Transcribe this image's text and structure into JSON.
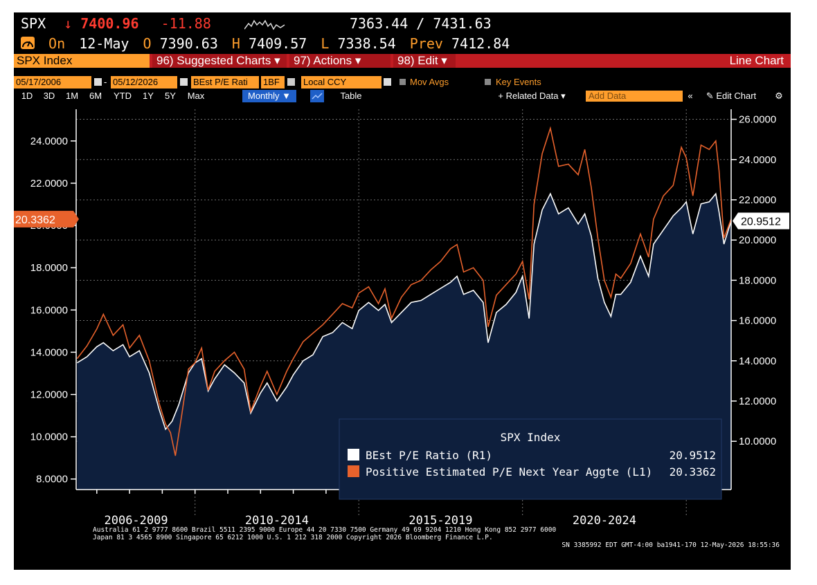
{
  "quote": {
    "ticker": "SPX",
    "arrow": "↓",
    "price": "7400.96",
    "change": "-11.88",
    "bid_ask": "7363.44 / 7431.63",
    "status": "On",
    "date": "12-May",
    "open_label": "O",
    "open": "7390.63",
    "high_label": "H",
    "high": "7409.57",
    "low_label": "L",
    "low": "7338.54",
    "prev_label": "Prev",
    "prev": "7412.84"
  },
  "tabs": {
    "index": "SPX Index",
    "suggested": "96) Suggested Charts ▾",
    "actions": "97) Actions ▾",
    "edit": "98) Edit ▾",
    "right": "Line Chart"
  },
  "controls": {
    "start_date": "05/17/2006",
    "end_date": "05/12/2026",
    "field": "BEst P/E Rati",
    "field_code": "1BF",
    "currency": "Local CCY",
    "mov_avgs": "Mov Avgs",
    "key_events": "Key Events"
  },
  "range": {
    "buttons": [
      "1D",
      "3D",
      "1M",
      "6M",
      "YTD",
      "1Y",
      "5Y",
      "Max"
    ],
    "frequency": "Monthly ▼",
    "table": "Table",
    "related": "+ Related Data ▾",
    "add_data_placeholder": "Add Data",
    "collapse": "«",
    "edit_chart": "✎ Edit Chart",
    "settings_icon": "gear-icon"
  },
  "legend": {
    "title": "SPX Index",
    "entries": [
      {
        "label": "BEst P/E Ratio  (R1)",
        "value": "20.9512",
        "color": "#ffffff"
      },
      {
        "label": "Positive Estimated P/E Next Year Aggte  (L1)",
        "value": "20.3362",
        "color": "#e8622c"
      }
    ]
  },
  "last_values": {
    "left": "20.3362",
    "right": "20.9512"
  },
  "footer": {
    "line1": "Australia 61 2 9777 8600 Brazil 5511 2395 9000 Europe 44 20 7330 7500 Germany 49 69 9204 1210 Hong Kong 852 2977 6000",
    "line2": "Japan 81 3 4565 8900       Singapore 65 6212 1000       U.S. 1 212 318 2000          Copyright 2026 Bloomberg Finance L.P.",
    "line3": "SN 3385992 EDT  GMT-4:00 ba1941-170 12-May-2026 18:55:36"
  },
  "colors": {
    "background": "#000000",
    "area_fill": "#0e1f3d",
    "orange_series": "#e8622c",
    "white_series": "#ffffff",
    "amber": "#ff9e2c",
    "red_bar": "#c01c22"
  },
  "chart_data": {
    "type": "line",
    "x_labels": [
      "2006-2009",
      "2010-2014",
      "2015-2019",
      "2020-2024"
    ],
    "x_range": [
      2006.37,
      2026.37
    ],
    "left_axis": {
      "ticks": [
        "8.0000",
        "10.0000",
        "12.0000",
        "14.0000",
        "16.0000",
        "18.0000",
        "20.0000",
        "22.0000",
        "24.0000"
      ],
      "range": [
        7.5,
        25.5
      ]
    },
    "right_axis": {
      "ticks": [
        "10.0000",
        "12.0000",
        "14.0000",
        "16.0000",
        "18.0000",
        "20.0000",
        "22.0000",
        "24.0000",
        "26.0000"
      ],
      "range": [
        7.6,
        26.5
      ]
    },
    "grid": true,
    "legend_position": "bottom-right",
    "series": [
      {
        "name": "Positive Estimated P/E Next Year Aggte",
        "axis": "left",
        "points": [
          [
            2006.4,
            13.7
          ],
          [
            2006.7,
            14.3
          ],
          [
            2007.0,
            15.1
          ],
          [
            2007.2,
            15.8
          ],
          [
            2007.5,
            14.8
          ],
          [
            2007.8,
            15.3
          ],
          [
            2008.0,
            14.2
          ],
          [
            2008.3,
            14.8
          ],
          [
            2008.6,
            13.6
          ],
          [
            2008.9,
            11.6
          ],
          [
            2009.1,
            10.6
          ],
          [
            2009.25,
            10.2
          ],
          [
            2009.4,
            9.1
          ],
          [
            2009.6,
            11.1
          ],
          [
            2009.8,
            13.2
          ],
          [
            2010.0,
            13.5
          ],
          [
            2010.2,
            14.2
          ],
          [
            2010.4,
            12.2
          ],
          [
            2010.6,
            13.1
          ],
          [
            2010.9,
            13.6
          ],
          [
            2011.2,
            14.0
          ],
          [
            2011.5,
            13.2
          ],
          [
            2011.7,
            11.2
          ],
          [
            2012.0,
            12.4
          ],
          [
            2012.2,
            13.1
          ],
          [
            2012.5,
            12.0
          ],
          [
            2012.8,
            13.1
          ],
          [
            2013.0,
            13.7
          ],
          [
            2013.3,
            14.5
          ],
          [
            2013.6,
            14.9
          ],
          [
            2013.9,
            15.3
          ],
          [
            2014.2,
            15.8
          ],
          [
            2014.5,
            16.3
          ],
          [
            2014.8,
            16.1
          ],
          [
            2015.0,
            16.8
          ],
          [
            2015.3,
            17.1
          ],
          [
            2015.6,
            16.3
          ],
          [
            2015.8,
            17.0
          ],
          [
            2016.0,
            15.6
          ],
          [
            2016.3,
            16.6
          ],
          [
            2016.6,
            17.2
          ],
          [
            2016.9,
            17.4
          ],
          [
            2017.2,
            17.9
          ],
          [
            2017.5,
            18.3
          ],
          [
            2017.8,
            18.9
          ],
          [
            2018.0,
            19.1
          ],
          [
            2018.2,
            17.8
          ],
          [
            2018.5,
            18.0
          ],
          [
            2018.8,
            17.4
          ],
          [
            2018.95,
            15.2
          ],
          [
            2019.2,
            16.7
          ],
          [
            2019.5,
            17.2
          ],
          [
            2019.8,
            17.7
          ],
          [
            2020.0,
            18.3
          ],
          [
            2020.2,
            16.5
          ],
          [
            2020.35,
            21.0
          ],
          [
            2020.6,
            23.4
          ],
          [
            2020.85,
            24.6
          ],
          [
            2021.1,
            22.8
          ],
          [
            2021.4,
            22.9
          ],
          [
            2021.7,
            22.4
          ],
          [
            2021.9,
            23.6
          ],
          [
            2022.1,
            21.8
          ],
          [
            2022.3,
            19.4
          ],
          [
            2022.5,
            17.4
          ],
          [
            2022.7,
            16.6
          ],
          [
            2022.85,
            17.7
          ],
          [
            2023.0,
            17.5
          ],
          [
            2023.3,
            18.2
          ],
          [
            2023.6,
            19.6
          ],
          [
            2023.85,
            18.5
          ],
          [
            2024.0,
            20.3
          ],
          [
            2024.3,
            21.4
          ],
          [
            2024.6,
            21.9
          ],
          [
            2024.85,
            23.7
          ],
          [
            2025.0,
            23.2
          ],
          [
            2025.2,
            21.4
          ],
          [
            2025.45,
            23.8
          ],
          [
            2025.7,
            23.6
          ],
          [
            2025.9,
            24.0
          ],
          [
            2026.0,
            22.6
          ],
          [
            2026.15,
            19.4
          ],
          [
            2026.37,
            20.3
          ]
        ]
      },
      {
        "name": "BEst P/E Ratio",
        "axis": "right",
        "points": [
          [
            2006.4,
            13.9
          ],
          [
            2006.7,
            14.2
          ],
          [
            2007.0,
            14.7
          ],
          [
            2007.2,
            14.9
          ],
          [
            2007.5,
            14.5
          ],
          [
            2007.8,
            14.8
          ],
          [
            2008.0,
            14.2
          ],
          [
            2008.3,
            14.5
          ],
          [
            2008.6,
            13.4
          ],
          [
            2008.9,
            11.6
          ],
          [
            2009.1,
            10.6
          ],
          [
            2009.3,
            11.0
          ],
          [
            2009.5,
            11.8
          ],
          [
            2009.8,
            13.4
          ],
          [
            2010.0,
            13.9
          ],
          [
            2010.2,
            14.1
          ],
          [
            2010.4,
            12.5
          ],
          [
            2010.6,
            13.1
          ],
          [
            2010.9,
            13.8
          ],
          [
            2011.2,
            13.4
          ],
          [
            2011.5,
            12.9
          ],
          [
            2011.7,
            11.4
          ],
          [
            2012.0,
            12.4
          ],
          [
            2012.2,
            12.9
          ],
          [
            2012.5,
            12.0
          ],
          [
            2012.8,
            12.7
          ],
          [
            2013.0,
            13.3
          ],
          [
            2013.3,
            14.0
          ],
          [
            2013.6,
            14.3
          ],
          [
            2013.9,
            15.2
          ],
          [
            2014.2,
            15.4
          ],
          [
            2014.5,
            15.9
          ],
          [
            2014.8,
            15.6
          ],
          [
            2015.0,
            16.5
          ],
          [
            2015.3,
            16.9
          ],
          [
            2015.6,
            16.5
          ],
          [
            2015.8,
            16.8
          ],
          [
            2016.0,
            15.9
          ],
          [
            2016.3,
            16.4
          ],
          [
            2016.6,
            16.9
          ],
          [
            2016.9,
            17.0
          ],
          [
            2017.2,
            17.3
          ],
          [
            2017.5,
            17.6
          ],
          [
            2017.8,
            17.9
          ],
          [
            2018.0,
            18.2
          ],
          [
            2018.2,
            17.3
          ],
          [
            2018.5,
            17.5
          ],
          [
            2018.8,
            16.9
          ],
          [
            2018.95,
            14.9
          ],
          [
            2019.2,
            16.4
          ],
          [
            2019.5,
            16.8
          ],
          [
            2019.8,
            17.4
          ],
          [
            2020.0,
            18.2
          ],
          [
            2020.2,
            16.1
          ],
          [
            2020.35,
            19.8
          ],
          [
            2020.6,
            21.5
          ],
          [
            2020.85,
            22.3
          ],
          [
            2021.1,
            21.3
          ],
          [
            2021.4,
            21.6
          ],
          [
            2021.7,
            20.8
          ],
          [
            2021.9,
            21.3
          ],
          [
            2022.1,
            20.2
          ],
          [
            2022.3,
            18.1
          ],
          [
            2022.5,
            16.9
          ],
          [
            2022.7,
            16.2
          ],
          [
            2022.85,
            17.3
          ],
          [
            2023.0,
            17.3
          ],
          [
            2023.3,
            17.9
          ],
          [
            2023.6,
            19.2
          ],
          [
            2023.85,
            18.2
          ],
          [
            2024.0,
            19.8
          ],
          [
            2024.3,
            20.5
          ],
          [
            2024.6,
            21.2
          ],
          [
            2024.85,
            21.6
          ],
          [
            2025.0,
            21.9
          ],
          [
            2025.2,
            20.3
          ],
          [
            2025.45,
            21.8
          ],
          [
            2025.7,
            21.9
          ],
          [
            2025.9,
            22.3
          ],
          [
            2026.0,
            21.4
          ],
          [
            2026.15,
            19.8
          ],
          [
            2026.37,
            20.95
          ]
        ]
      }
    ]
  }
}
